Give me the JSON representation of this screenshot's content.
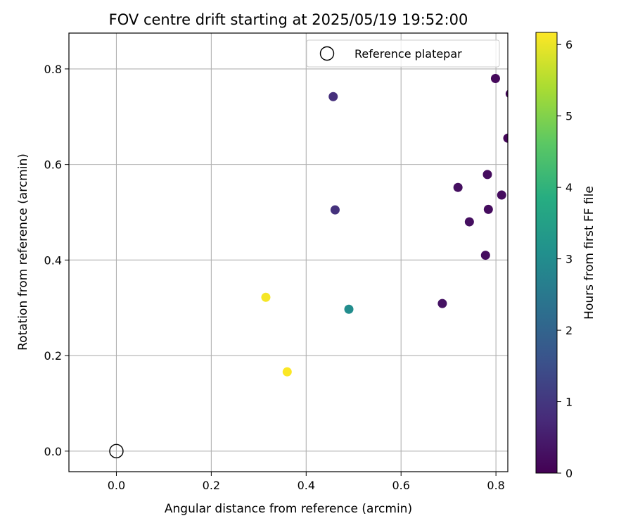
{
  "chart_data": {
    "type": "scatter",
    "title": "FOV centre drift starting at 2025/05/19 19:52:00",
    "xlabel": "Angular distance from reference (arcmin)",
    "ylabel": "Rotation from reference (arcmin)",
    "xlim": [
      -0.1,
      0.825
    ],
    "ylim": [
      -0.043,
      0.875
    ],
    "xticks": [
      "0.0",
      "0.2",
      "0.4",
      "0.6",
      "0.8"
    ],
    "yticks": [
      "0.0",
      "0.2",
      "0.4",
      "0.6",
      "0.8"
    ],
    "grid": true,
    "legend": {
      "placement": "upper-right",
      "entries": [
        "Reference platepar"
      ]
    },
    "reference_point": {
      "x": 0.0,
      "y": 0.0,
      "marker": "open-circle",
      "label": "Reference platepar"
    },
    "colorbar": {
      "label": "Hours from first FF file",
      "colormap": "viridis",
      "range": [
        0,
        6.17
      ],
      "ticks": [
        "0",
        "1",
        "2",
        "3",
        "4",
        "5",
        "6"
      ]
    },
    "points": [
      {
        "x": 0.457,
        "y": 0.742,
        "hours": 0.85
      },
      {
        "x": 0.799,
        "y": 0.78,
        "hours": 0.15
      },
      {
        "x": 0.83,
        "y": 0.748,
        "hours": 0.1
      },
      {
        "x": 0.825,
        "y": 0.655,
        "hours": 0.1
      },
      {
        "x": 0.782,
        "y": 0.579,
        "hours": 0.2
      },
      {
        "x": 0.72,
        "y": 0.552,
        "hours": 0.25
      },
      {
        "x": 0.812,
        "y": 0.536,
        "hours": 0.2
      },
      {
        "x": 0.784,
        "y": 0.506,
        "hours": 0.2
      },
      {
        "x": 0.461,
        "y": 0.505,
        "hours": 0.9
      },
      {
        "x": 0.744,
        "y": 0.48,
        "hours": 0.25
      },
      {
        "x": 0.778,
        "y": 0.41,
        "hours": 0.2
      },
      {
        "x": 0.315,
        "y": 0.322,
        "hours": 6.1
      },
      {
        "x": 0.687,
        "y": 0.309,
        "hours": 0.3
      },
      {
        "x": 0.49,
        "y": 0.297,
        "hours": 3.0
      },
      {
        "x": 0.36,
        "y": 0.166,
        "hours": 6.15
      }
    ]
  }
}
